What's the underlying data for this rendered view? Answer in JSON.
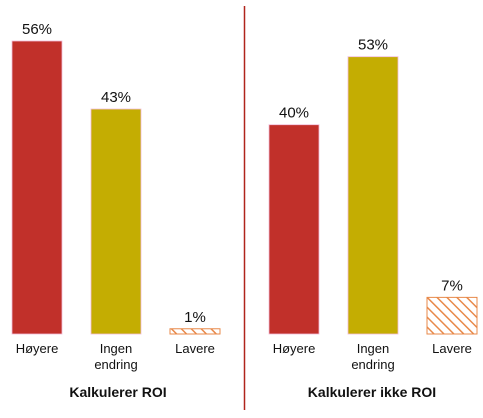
{
  "colors": {
    "red": "#c1302a",
    "olive": "#c4ad02",
    "hatch": "#e8894a",
    "divider": "#b0241c",
    "bar_outline": "#f2bcd8"
  },
  "chart_data": [
    {
      "type": "bar",
      "title": "Kalkulerer ROI",
      "categories": [
        [
          "Høyere"
        ],
        [
          "Ingen",
          "endring"
        ],
        [
          "Lavere"
        ]
      ],
      "values": [
        56,
        43,
        1
      ],
      "value_labels": [
        "56%",
        "43%",
        "1%"
      ],
      "styles": [
        "red",
        "olive",
        "hatch"
      ],
      "ylim": [
        0,
        56
      ]
    },
    {
      "type": "bar",
      "title": "Kalkulerer ikke ROI",
      "categories": [
        [
          "Høyere"
        ],
        [
          "Ingen",
          "endring"
        ],
        [
          "Lavere"
        ]
      ],
      "values": [
        40,
        53,
        7
      ],
      "value_labels": [
        "40%",
        "53%",
        "7%"
      ],
      "styles": [
        "red",
        "olive",
        "hatch"
      ],
      "ylim": [
        0,
        56
      ]
    }
  ]
}
